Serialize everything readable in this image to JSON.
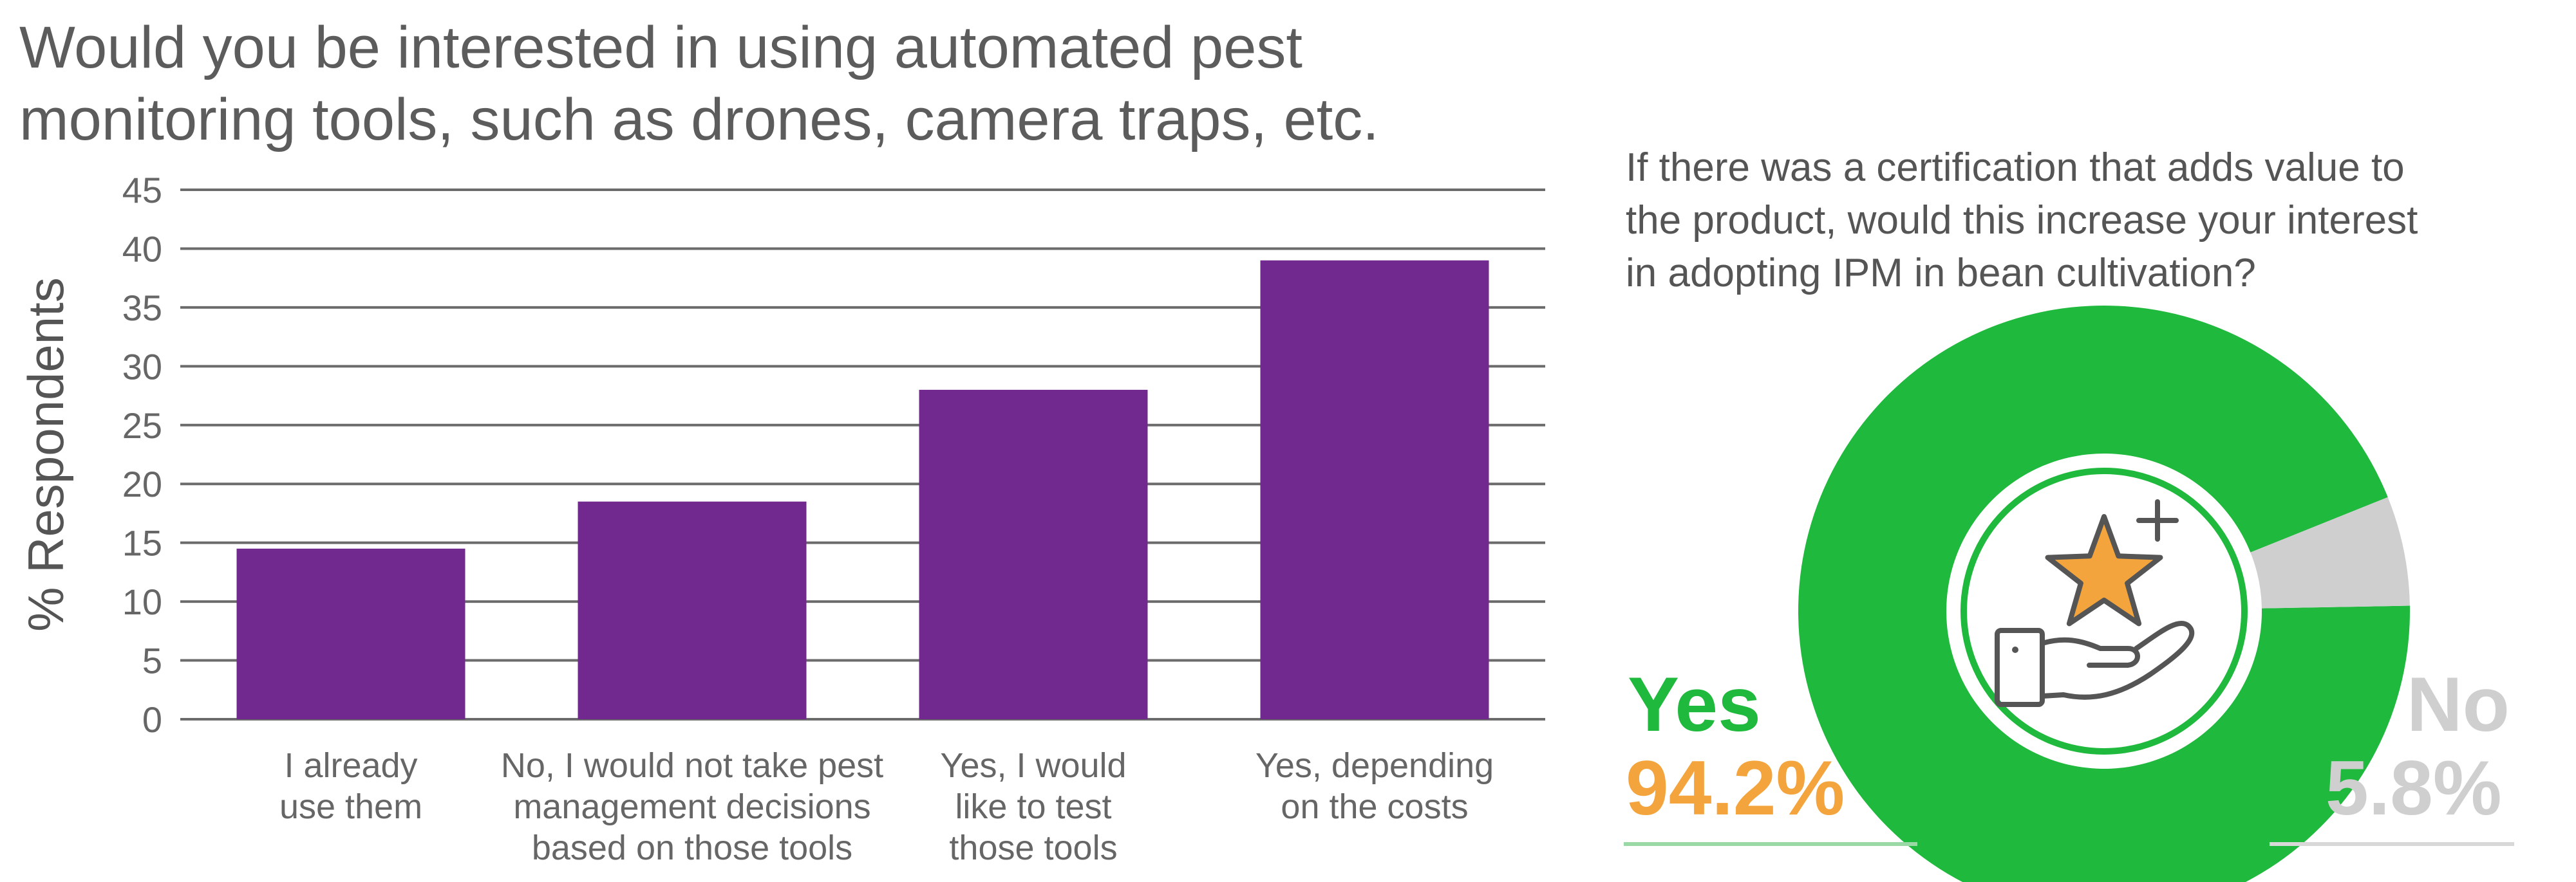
{
  "bar_title": [
    "Would you be interested in using automated pest",
    "monitoring tools, such as drones, camera traps, etc."
  ],
  "pie_title": [
    "If there was a certification that adds value to",
    "the product, would this increase your interest",
    "in adopting IPM in bean cultivation?"
  ],
  "icons": [
    "star-icon",
    "plus-icon",
    "hand-icon"
  ],
  "colors": {
    "bar": "#72298f",
    "yes": "#1fb93d",
    "no": "#cfcfcf",
    "yes_value": "#f4a43c",
    "grid": "#6b6b6b",
    "text": "#5c5c5c"
  },
  "chart_data": [
    {
      "type": "bar",
      "title": "Would you be interested in using automated pest monitoring tools, such as drones, camera traps, etc.",
      "ylabel": "% Respondents",
      "xlabel": "",
      "ylim": [
        0,
        45
      ],
      "yticks": [
        0,
        5,
        10,
        15,
        20,
        25,
        30,
        35,
        40,
        45
      ],
      "grid": true,
      "categories": [
        [
          "I already",
          "use them"
        ],
        [
          "No, I would not take pest",
          "management decisions",
          "based on those tools"
        ],
        [
          "Yes, I would",
          "like to test",
          "those tools"
        ],
        [
          "Yes, depending",
          "on the costs"
        ]
      ],
      "values": [
        14.5,
        18.5,
        28,
        39
      ]
    },
    {
      "type": "pie",
      "title": "If there was a certification that adds value to the product, would this increase your interest in adopting IPM in bean cultivation?",
      "slices": [
        {
          "label": "Yes",
          "value": 94.2,
          "display": "94.2%"
        },
        {
          "label": "No",
          "value": 5.8,
          "display": "5.8%"
        }
      ]
    }
  ]
}
